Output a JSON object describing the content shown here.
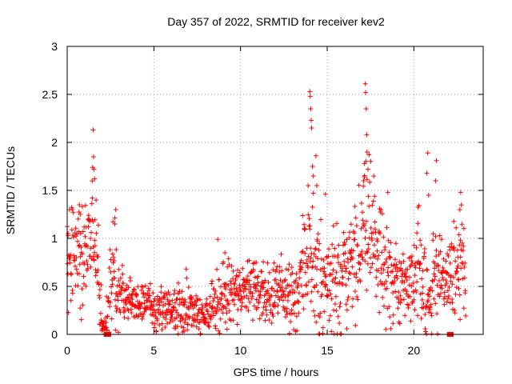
{
  "chart_data": {
    "type": "scatter",
    "title": "Day 357 of 2022, SRMTID for receiver kev2",
    "xlabel": "GPS time / hours",
    "ylabel": "SRMTID / TECUs",
    "xlim": [
      0,
      24
    ],
    "ylim": [
      0,
      3
    ],
    "xticks": [
      0,
      5,
      10,
      15,
      20
    ],
    "yticks": [
      0,
      0.5,
      1,
      1.5,
      2,
      2.5,
      3
    ],
    "grid": true,
    "marker": "+",
    "series_color": "#ff0000",
    "envelope": [
      [
        0.0,
        0.65,
        0.25
      ],
      [
        0.3,
        0.75,
        0.25
      ],
      [
        0.6,
        0.7,
        0.25
      ],
      [
        0.9,
        0.75,
        0.25
      ],
      [
        1.2,
        0.85,
        0.25
      ],
      [
        1.45,
        1.25,
        0.35
      ],
      [
        1.65,
        0.9,
        0.3
      ],
      [
        1.85,
        0.45,
        0.25
      ],
      [
        2.0,
        0.08,
        0.06
      ],
      [
        2.2,
        0.05,
        0.04
      ],
      [
        2.45,
        0.45,
        0.25
      ],
      [
        2.7,
        0.7,
        0.3
      ],
      [
        3.0,
        0.45,
        0.15
      ],
      [
        3.5,
        0.38,
        0.1
      ],
      [
        4.0,
        0.35,
        0.1
      ],
      [
        4.5,
        0.33,
        0.1
      ],
      [
        5.0,
        0.28,
        0.1
      ],
      [
        5.5,
        0.25,
        0.1
      ],
      [
        6.0,
        0.25,
        0.1
      ],
      [
        6.5,
        0.24,
        0.1
      ],
      [
        7.0,
        0.26,
        0.12
      ],
      [
        7.5,
        0.2,
        0.1
      ],
      [
        8.0,
        0.17,
        0.08
      ],
      [
        8.5,
        0.3,
        0.15
      ],
      [
        9.0,
        0.45,
        0.2
      ],
      [
        9.5,
        0.4,
        0.15
      ],
      [
        10.0,
        0.45,
        0.15
      ],
      [
        10.5,
        0.5,
        0.15
      ],
      [
        11.0,
        0.4,
        0.15
      ],
      [
        11.5,
        0.38,
        0.15
      ],
      [
        12.0,
        0.5,
        0.15
      ],
      [
        12.5,
        0.45,
        0.15
      ],
      [
        13.0,
        0.38,
        0.15
      ],
      [
        13.3,
        0.3,
        0.12
      ],
      [
        13.6,
        0.8,
        0.3
      ],
      [
        13.9,
        0.75,
        0.35
      ],
      [
        14.2,
        0.75,
        0.4
      ],
      [
        14.5,
        0.6,
        0.3
      ],
      [
        14.8,
        0.5,
        0.25
      ],
      [
        15.2,
        0.55,
        0.25
      ],
      [
        15.6,
        0.55,
        0.25
      ],
      [
        16.0,
        0.6,
        0.25
      ],
      [
        16.4,
        0.65,
        0.3
      ],
      [
        16.8,
        0.8,
        0.3
      ],
      [
        17.1,
        1.3,
        0.4
      ],
      [
        17.4,
        1.05,
        0.35
      ],
      [
        17.8,
        0.85,
        0.3
      ],
      [
        18.2,
        0.75,
        0.3
      ],
      [
        18.6,
        0.6,
        0.25
      ],
      [
        19.0,
        0.55,
        0.2
      ],
      [
        19.5,
        0.5,
        0.2
      ],
      [
        20.0,
        0.55,
        0.2
      ],
      [
        20.3,
        0.7,
        0.3
      ],
      [
        20.6,
        0.45,
        0.25
      ],
      [
        20.9,
        0.25,
        0.2
      ],
      [
        21.2,
        0.55,
        0.3
      ],
      [
        21.5,
        0.55,
        0.25
      ],
      [
        21.8,
        0.45,
        0.2
      ],
      [
        22.1,
        0.55,
        0.2
      ],
      [
        22.4,
        0.75,
        0.25
      ],
      [
        22.8,
        0.75,
        0.3
      ]
    ],
    "spikes": [
      [
        1.5,
        2.13
      ],
      [
        1.52,
        1.85
      ],
      [
        1.55,
        1.72
      ],
      [
        1.58,
        1.62
      ],
      [
        1.45,
        1.42
      ],
      [
        2.8,
        1.3
      ],
      [
        2.75,
        1.15
      ],
      [
        14.0,
        2.53
      ],
      [
        14.02,
        2.48
      ],
      [
        14.05,
        2.35
      ],
      [
        14.08,
        2.23
      ],
      [
        14.1,
        2.15
      ],
      [
        14.15,
        1.75
      ],
      [
        14.2,
        1.65
      ],
      [
        14.35,
        1.86
      ],
      [
        14.4,
        1.55
      ],
      [
        14.9,
        1.46
      ],
      [
        13.9,
        1.55
      ],
      [
        17.2,
        2.61
      ],
      [
        17.22,
        2.52
      ],
      [
        17.25,
        2.35
      ],
      [
        17.28,
        2.08
      ],
      [
        17.3,
        1.9
      ],
      [
        17.15,
        1.78
      ],
      [
        17.35,
        1.72
      ],
      [
        17.1,
        1.6
      ],
      [
        18.5,
        1.48
      ],
      [
        20.8,
        1.89
      ],
      [
        20.75,
        1.68
      ],
      [
        20.85,
        1.45
      ],
      [
        21.3,
        1.81
      ],
      [
        21.25,
        1.6
      ],
      [
        22.7,
        1.48
      ],
      [
        22.65,
        1.3
      ],
      [
        0.05,
        1.05
      ],
      [
        0.7,
        1.35
      ],
      [
        0.75,
        1.25
      ],
      [
        9.1,
        0.85
      ],
      [
        10.9,
        0.75
      ]
    ],
    "square_markers": [
      [
        2.25,
        0.0
      ],
      [
        2.4,
        0.0
      ],
      [
        22.05,
        0.0
      ],
      [
        22.15,
        0.0
      ]
    ],
    "data_end_hour": 23.0
  }
}
